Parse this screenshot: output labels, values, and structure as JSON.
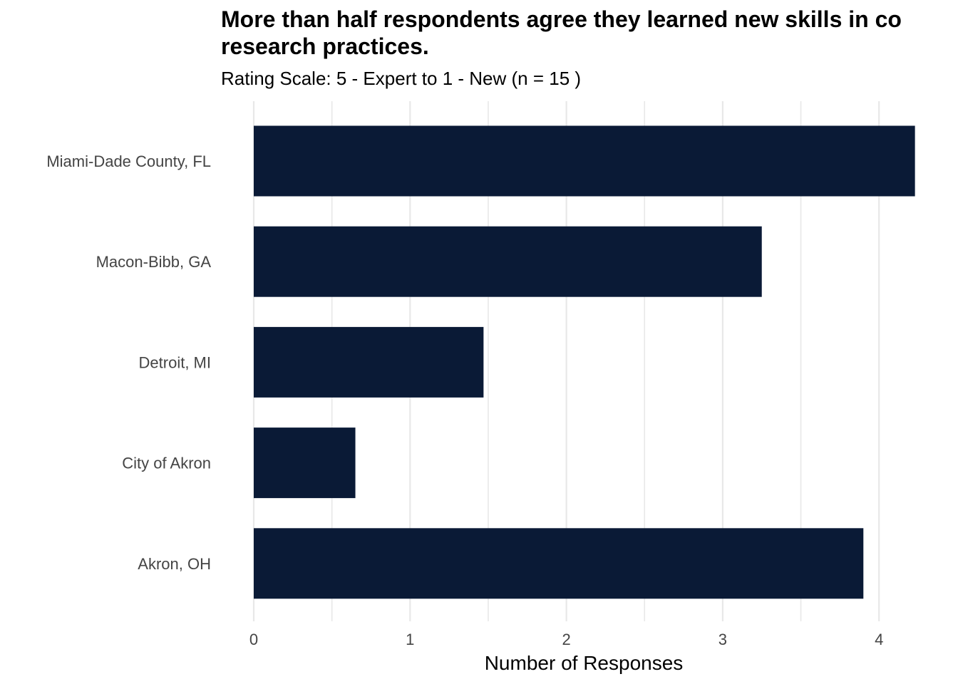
{
  "chart_data": {
    "type": "bar",
    "orientation": "horizontal",
    "title": "More than half respondents agree they learned new skills in co research practices.",
    "title_lines": [
      "More than half respondents agree they learned new skills in co",
      "research practices."
    ],
    "subtitle": "Rating Scale: 5 - Expert to 1 - New (n = 15 )",
    "categories": [
      "Miami-Dade County, FL",
      "Macon-Bibb, GA",
      "Detroit, MI",
      "City of Akron",
      "Akron, OH"
    ],
    "values": [
      4.23,
      3.25,
      1.47,
      0.65,
      3.9
    ],
    "xlabel": "Number of Responses",
    "ylabel": "",
    "xlim": [
      0,
      4.23
    ],
    "x_ticks": [
      "0",
      "1",
      "2",
      "3",
      "4"
    ],
    "grid": true,
    "bar_color": "#0a1a36",
    "grid_color": "#e8e8e8"
  }
}
